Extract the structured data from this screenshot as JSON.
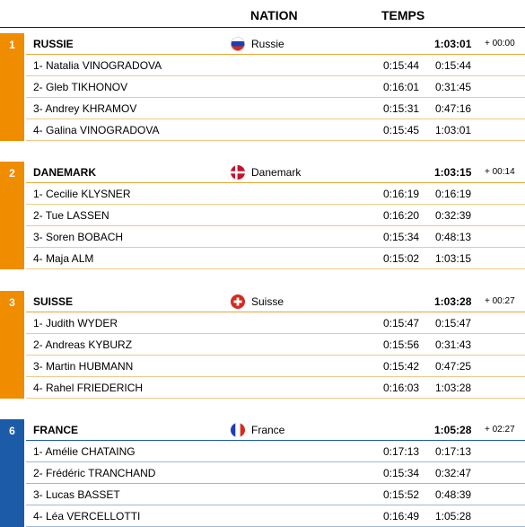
{
  "header": {
    "nation": "NATION",
    "temps": "TEMPS"
  },
  "colors": {
    "orange": "#f08c00",
    "blue": "#1c5ba8"
  },
  "teams": [
    {
      "rank": "1",
      "name": "RUSSIE",
      "nation": "Russie",
      "flag": "russia-flag",
      "total": "1:03:01",
      "gap": "+ 00:00",
      "color": "orange",
      "members": [
        {
          "name": "1- Natalia VINOGRADOVA",
          "leg": "0:15:44",
          "cum": "0:15:44"
        },
        {
          "name": "2- Gleb TIKHONOV",
          "leg": "0:16:01",
          "cum": "0:31:45"
        },
        {
          "name": "3- Andrey KHRAMOV",
          "leg": "0:15:31",
          "cum": "0:47:16"
        },
        {
          "name": "4- Galina VINOGRADOVA",
          "leg": "0:15:45",
          "cum": "1:03:01"
        }
      ]
    },
    {
      "rank": "2",
      "name": "DANEMARK",
      "nation": "Danemark",
      "flag": "denmark-flag",
      "total": "1:03:15",
      "gap": "+ 00:14",
      "color": "orange",
      "members": [
        {
          "name": "1- Cecilie KLYSNER",
          "leg": "0:16:19",
          "cum": "0:16:19"
        },
        {
          "name": "2- Tue LASSEN",
          "leg": "0:16:20",
          "cum": "0:32:39"
        },
        {
          "name": "3- Soren BOBACH",
          "leg": "0:15:34",
          "cum": "0:48:13"
        },
        {
          "name": "4- Maja ALM",
          "leg": "0:15:02",
          "cum": "1:03:15"
        }
      ]
    },
    {
      "rank": "3",
      "name": "SUISSE",
      "nation": "Suisse",
      "flag": "switzerland-flag",
      "total": "1:03:28",
      "gap": "+ 00:27",
      "color": "orange",
      "members": [
        {
          "name": "1- Judith WYDER",
          "leg": "0:15:47",
          "cum": "0:15:47"
        },
        {
          "name": "2- Andreas KYBURZ",
          "leg": "0:15:56",
          "cum": "0:31:43"
        },
        {
          "name": "3- Martin HUBMANN",
          "leg": "0:15:42",
          "cum": "0:47:25"
        },
        {
          "name": "4- Rahel FRIEDERICH",
          "leg": "0:16:03",
          "cum": "1:03:28"
        }
      ]
    },
    {
      "rank": "6",
      "name": "FRANCE",
      "nation": "France",
      "flag": "france-flag",
      "total": "1:05:28",
      "gap": "+ 02:27",
      "color": "blue",
      "members": [
        {
          "name": "1- Amélie CHATAING",
          "leg": "0:17:13",
          "cum": "0:17:13"
        },
        {
          "name": "2- Frédéric TRANCHAND",
          "leg": "0:15:34",
          "cum": "0:32:47"
        },
        {
          "name": "3- Lucas BASSET",
          "leg": "0:15:52",
          "cum": "0:48:39"
        },
        {
          "name": "4- Léa VERCELLOTTI",
          "leg": "0:16:49",
          "cum": "1:05:28"
        }
      ]
    }
  ]
}
